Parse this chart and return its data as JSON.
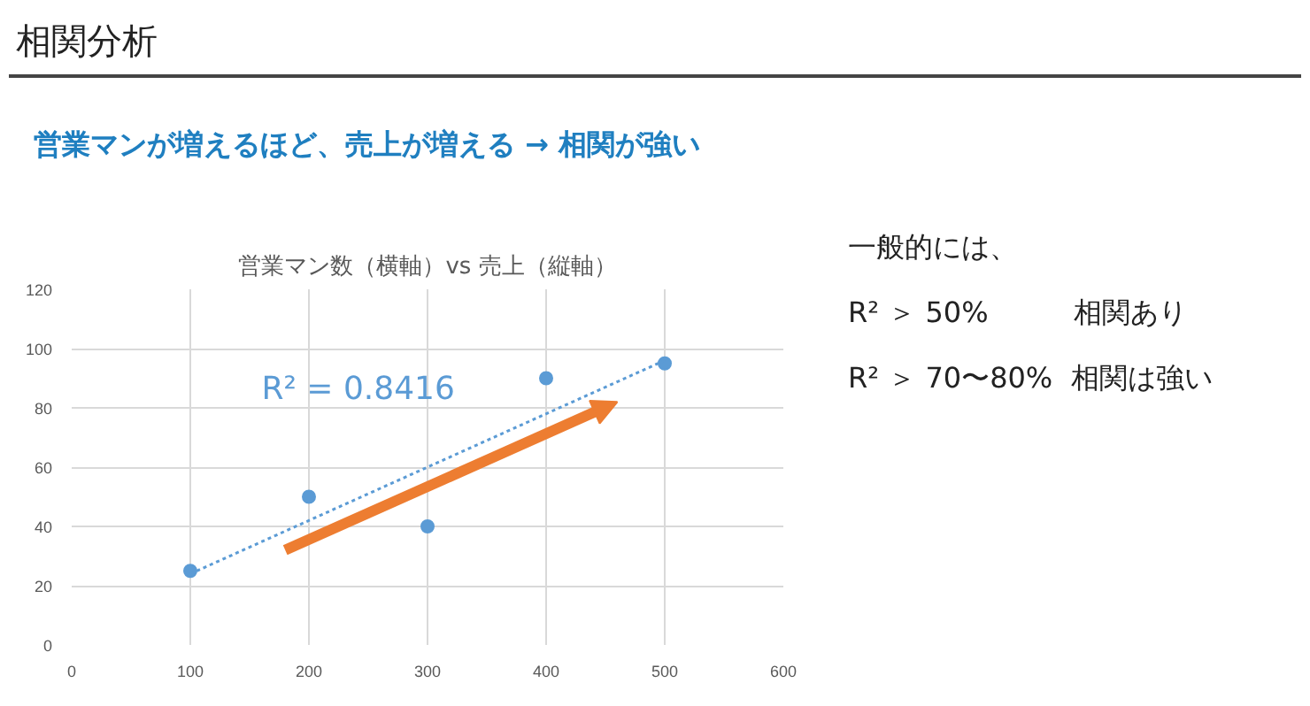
{
  "chart_data": {
    "type": "scatter",
    "title": "営業マン数（横軸）vs 売上（縦軸）",
    "subtitle": "営業マンが増えるほど、売上が増える → 相関が強い",
    "x": [
      100,
      200,
      300,
      400,
      500
    ],
    "series": [
      {
        "color": "#5b9bd5",
        "marker": "circle",
        "values": [
          25,
          50,
          40,
          90,
          95
        ]
      },
      {
        "type": "line",
        "color": "#5b9bd5",
        "line_style": "dotted",
        "x": [
          100,
          500
        ],
        "values": [
          24,
          96
        ]
      }
    ],
    "xlim": [
      0,
      600
    ],
    "xticks": [
      0,
      100,
      200,
      300,
      400,
      500,
      600
    ],
    "ylim": [
      0,
      120
    ],
    "yticks": [
      0,
      20,
      40,
      60,
      80,
      100,
      120
    ],
    "grid": true,
    "annotations": [
      "相関分析",
      "R² = 0.8416",
      "一般的には、",
      "R² ＞ 50%　　　相関あり",
      "R² ＞ 70〜80%  相関は強い"
    ]
  }
}
